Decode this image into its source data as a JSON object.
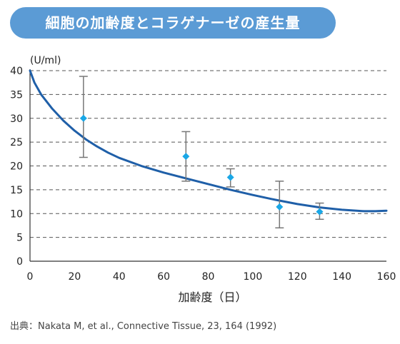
{
  "header": {
    "title": "細胞の加齢度とコラゲナーゼの産生量"
  },
  "source_note": "出典：Nakata M, et al., Connective Tissue, 23, 164 (1992)",
  "colors": {
    "title_bg": "#5b9bd5",
    "curve": "#1f5fa8",
    "marker": "#1aa7e6",
    "grid": "#555555"
  },
  "chart_data": {
    "type": "scatter",
    "title": "細胞の加齢度とコラゲナーゼの産生量",
    "unit_label": "(U/ml)",
    "xlabel": "加齢度（日）",
    "ylabel": "",
    "xlim": [
      0,
      160
    ],
    "ylim": [
      0,
      40
    ],
    "x_ticks": [
      "0",
      "20",
      "40",
      "60",
      "80",
      "100",
      "120",
      "140",
      "160"
    ],
    "y_ticks": [
      "0",
      "5",
      "10",
      "15",
      "20",
      "25",
      "30",
      "35",
      "40"
    ],
    "grid": "horizontal-dashed",
    "points": [
      {
        "x": 24,
        "y": 30.0,
        "err_low": 21.8,
        "err_high": 38.8
      },
      {
        "x": 70,
        "y": 22.0,
        "err_low": 16.8,
        "err_high": 27.2
      },
      {
        "x": 90,
        "y": 17.6,
        "err_low": 15.6,
        "err_high": 19.4
      },
      {
        "x": 112,
        "y": 11.4,
        "err_low": 7.0,
        "err_high": 16.8
      },
      {
        "x": 130,
        "y": 10.4,
        "err_low": 8.8,
        "err_high": 12.2
      }
    ],
    "trend_curve": [
      [
        0,
        40
      ],
      [
        2,
        37.5
      ],
      [
        5,
        35
      ],
      [
        10,
        32
      ],
      [
        15,
        29.5
      ],
      [
        20,
        27.4
      ],
      [
        25,
        25.6
      ],
      [
        30,
        24.1
      ],
      [
        35,
        22.8
      ],
      [
        40,
        21.7
      ],
      [
        50,
        20.0
      ],
      [
        60,
        18.6
      ],
      [
        70,
        17.4
      ],
      [
        80,
        16.2
      ],
      [
        90,
        15.0
      ],
      [
        100,
        13.9
      ],
      [
        110,
        12.9
      ],
      [
        120,
        12.0
      ],
      [
        130,
        11.3
      ],
      [
        140,
        10.8
      ],
      [
        150,
        10.5
      ],
      [
        155,
        10.5
      ],
      [
        160,
        10.6
      ]
    ]
  }
}
